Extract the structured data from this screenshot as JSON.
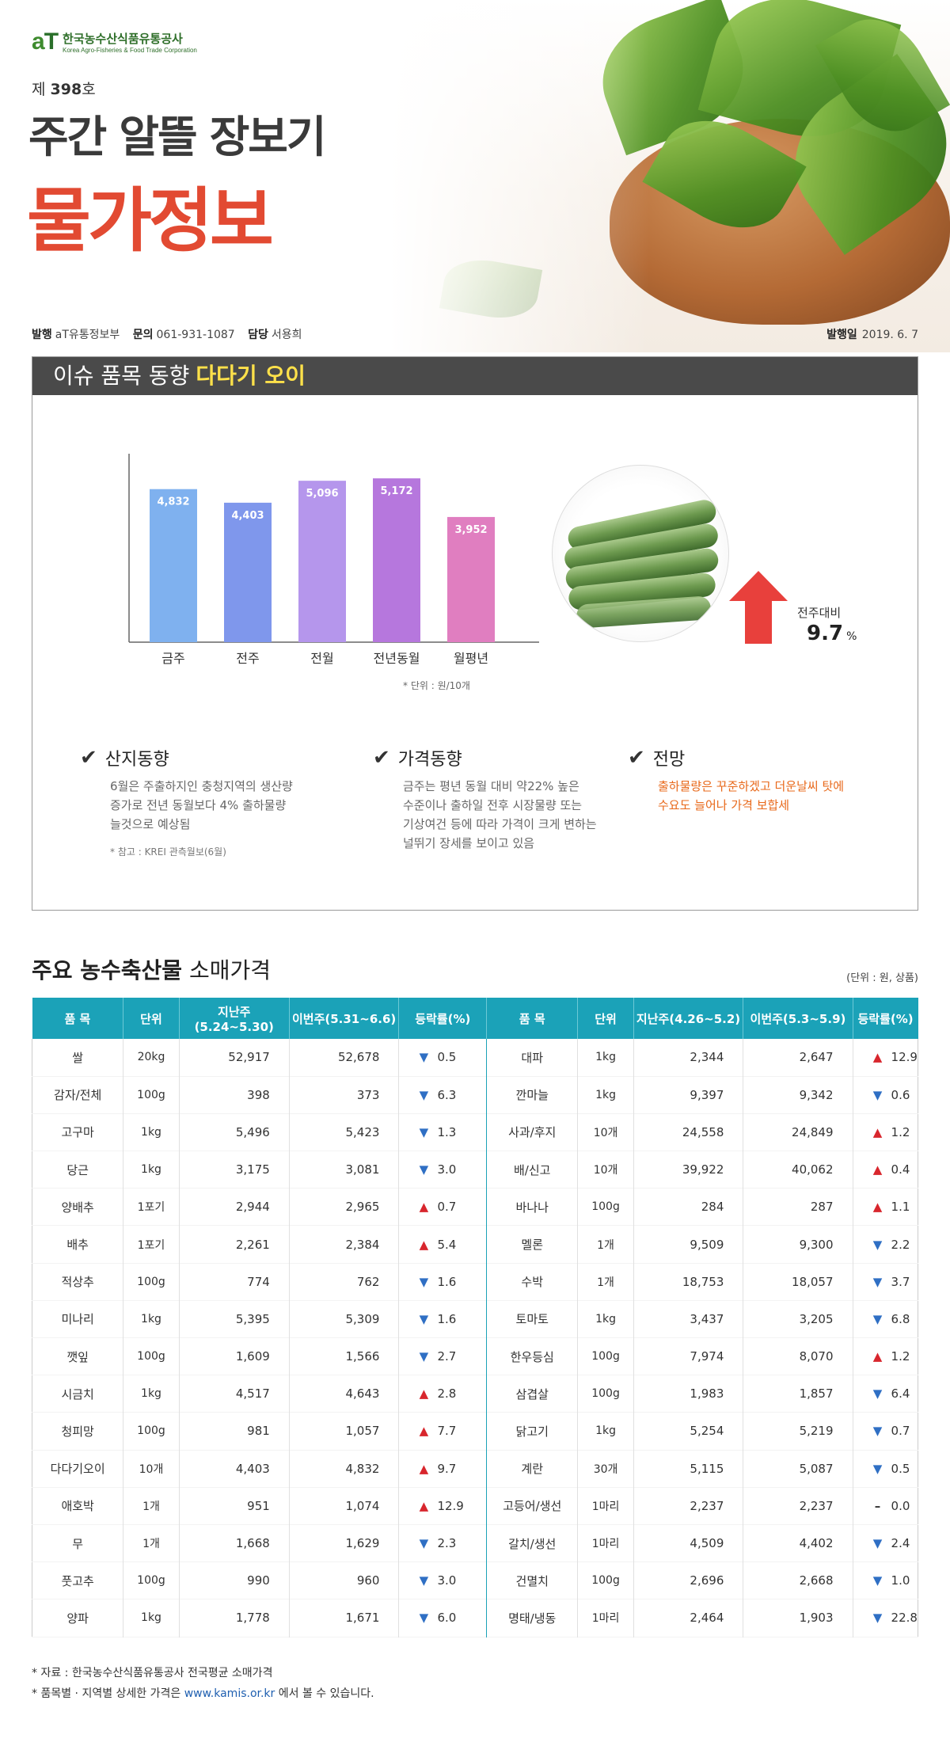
{
  "org": {
    "logo_mark_a": "a",
    "logo_mark_t": "T",
    "name": "한국농수산식품유통공사",
    "name_en": "Korea Agro-Fisheries & Food Trade Corporation"
  },
  "issue": {
    "prefix": "제",
    "number": "398",
    "suffix": "호"
  },
  "title": {
    "line1": "주간 알뜰 장보기",
    "line2": "물가정보"
  },
  "publisher": {
    "pub_label": "발행",
    "pub_value": "aT유통정보부",
    "contact_label": "문의",
    "contact_value": "061-931-1087",
    "manager_label": "담당",
    "manager_value": "서용희",
    "date_label": "발행일",
    "date_value": "2019. 6. 7"
  },
  "issue_item": {
    "heading": "이슈 품목 동향",
    "item": "다다기 오이",
    "unit_note": "* 단위 : 원/10개",
    "wow_label": "전주대비",
    "wow_value": "9.7",
    "wow_unit": "%",
    "wow_direction": "up"
  },
  "chart_data": {
    "type": "bar",
    "categories": [
      "금주",
      "전주",
      "전월",
      "전년동월",
      "월평년"
    ],
    "values": [
      4832,
      4403,
      5096,
      5172,
      3952
    ],
    "value_labels": [
      "4,832",
      "4,403",
      "5,096",
      "5,172",
      "3,952"
    ],
    "colors": [
      "#7fb1ef",
      "#7f97ec",
      "#b596ec",
      "#b677dd",
      "#e07ec0"
    ],
    "ylim": [
      0,
      5800
    ],
    "title": "",
    "xlabel": "",
    "ylabel": ""
  },
  "trends": [
    {
      "title": "산지동향",
      "body": [
        "6월은 주출하지인 충청지역의 생산량",
        "증가로 전년 동월보다 4% 출하물량",
        "늘것으로 예상됨"
      ],
      "note": "* 참고 : KREI 관측월보(6월)"
    },
    {
      "title": "가격동향",
      "body": [
        "금주는 평년 동월 대비 약22% 높은",
        "수준이나 출하일 전후 시장물량 또는",
        "기상여건 등에 따라 가격이 크게 변하는",
        "널뛰기 장세를 보이고 있음"
      ],
      "note": ""
    },
    {
      "title": "전망",
      "body": [
        "출하물량은 꾸준하겠고 더운날씨 탓에",
        "수요도 늘어나 가격 보합세"
      ],
      "note": ""
    }
  ],
  "price_section": {
    "title_bold": "주요 농수축산물",
    "title_rest": "소매가격",
    "unit": "(단위 : 원, 상품)",
    "headers_left": [
      "품 목",
      "단위",
      "지난주(5.24~5.30)",
      "이번주(5.31~6.6)",
      "등락률(%)"
    ],
    "headers_right": [
      "품 목",
      "단위",
      "지난주(4.26~5.2)",
      "이번주(5.3~5.9)",
      "등락률(%)"
    ],
    "rows": [
      {
        "l": [
          "쌀",
          "20kg",
          "52,917",
          "52,678",
          "down",
          "0.5"
        ],
        "r": [
          "대파",
          "1kg",
          "2,344",
          "2,647",
          "up",
          "12.9"
        ]
      },
      {
        "l": [
          "감자/전체",
          "100g",
          "398",
          "373",
          "down",
          "6.3"
        ],
        "r": [
          "깐마늘",
          "1kg",
          "9,397",
          "9,342",
          "down",
          "0.6"
        ]
      },
      {
        "l": [
          "고구마",
          "1kg",
          "5,496",
          "5,423",
          "down",
          "1.3"
        ],
        "r": [
          "사과/후지",
          "10개",
          "24,558",
          "24,849",
          "up",
          "1.2"
        ]
      },
      {
        "l": [
          "당근",
          "1kg",
          "3,175",
          "3,081",
          "down",
          "3.0"
        ],
        "r": [
          "배/신고",
          "10개",
          "39,922",
          "40,062",
          "up",
          "0.4"
        ]
      },
      {
        "l": [
          "양배추",
          "1포기",
          "2,944",
          "2,965",
          "up",
          "0.7"
        ],
        "r": [
          "바나나",
          "100g",
          "284",
          "287",
          "up",
          "1.1"
        ]
      },
      {
        "l": [
          "배추",
          "1포기",
          "2,261",
          "2,384",
          "up",
          "5.4"
        ],
        "r": [
          "멜론",
          "1개",
          "9,509",
          "9,300",
          "down",
          "2.2"
        ]
      },
      {
        "l": [
          "적상추",
          "100g",
          "774",
          "762",
          "down",
          "1.6"
        ],
        "r": [
          "수박",
          "1개",
          "18,753",
          "18,057",
          "down",
          "3.7"
        ]
      },
      {
        "l": [
          "미나리",
          "1kg",
          "5,395",
          "5,309",
          "down",
          "1.6"
        ],
        "r": [
          "토마토",
          "1kg",
          "3,437",
          "3,205",
          "down",
          "6.8"
        ]
      },
      {
        "l": [
          "깻잎",
          "100g",
          "1,609",
          "1,566",
          "down",
          "2.7"
        ],
        "r": [
          "한우등심",
          "100g",
          "7,974",
          "8,070",
          "up",
          "1.2"
        ]
      },
      {
        "l": [
          "시금치",
          "1kg",
          "4,517",
          "4,643",
          "up",
          "2.8"
        ],
        "r": [
          "삼겹살",
          "100g",
          "1,983",
          "1,857",
          "down",
          "6.4"
        ]
      },
      {
        "l": [
          "청피망",
          "100g",
          "981",
          "1,057",
          "up",
          "7.7"
        ],
        "r": [
          "닭고기",
          "1kg",
          "5,254",
          "5,219",
          "down",
          "0.7"
        ]
      },
      {
        "l": [
          "다다기오이",
          "10개",
          "4,403",
          "4,832",
          "up",
          "9.7"
        ],
        "r": [
          "계란",
          "30개",
          "5,115",
          "5,087",
          "down",
          "0.5"
        ]
      },
      {
        "l": [
          "애호박",
          "1개",
          "951",
          "1,074",
          "up",
          "12.9"
        ],
        "r": [
          "고등어/생선",
          "1마리",
          "2,237",
          "2,237",
          "flat",
          "0.0"
        ]
      },
      {
        "l": [
          "무",
          "1개",
          "1,668",
          "1,629",
          "down",
          "2.3"
        ],
        "r": [
          "갈치/생선",
          "1마리",
          "4,509",
          "4,402",
          "down",
          "2.4"
        ]
      },
      {
        "l": [
          "풋고추",
          "100g",
          "990",
          "960",
          "down",
          "3.0"
        ],
        "r": [
          "건멸치",
          "100g",
          "2,696",
          "2,668",
          "down",
          "1.0"
        ]
      },
      {
        "l": [
          "양파",
          "1kg",
          "1,778",
          "1,671",
          "down",
          "6.0"
        ],
        "r": [
          "명태/냉동",
          "1마리",
          "2,464",
          "1,903",
          "down",
          "22.8"
        ]
      }
    ]
  },
  "footnotes": {
    "source": "* 자료 : 한국농수산식품유통공사 전국평균 소매가격",
    "detail_pre": "* 품목별 · 지역별 상세한 가격은",
    "detail_link": "www.kamis.or.kr",
    "detail_post": "에서 볼 수 있습니다."
  },
  "colors": {
    "accent_red": "#e24a32",
    "table_header": "#1ba2b8",
    "up": "#d8262d",
    "down": "#2f6fc4",
    "highlight": "#ffe14a",
    "orange": "#e8681a"
  }
}
